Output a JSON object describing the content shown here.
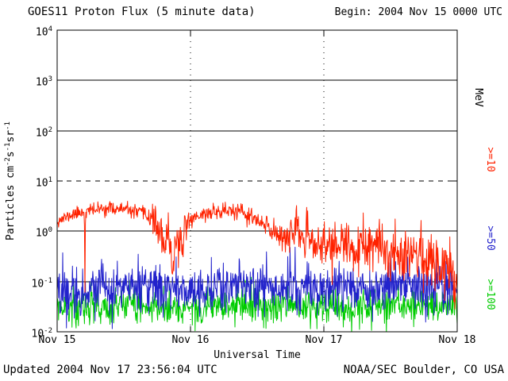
{
  "footer": {
    "updated": "Updated 2004 Nov 17 23:56:04 UTC",
    "credit": "NOAA/SEC Boulder, CO USA"
  },
  "chart_data": {
    "type": "line",
    "title": "GOES11 Proton Flux (5 minute data)",
    "subtitle": "Begin: 2004 Nov 15 0000 UTC",
    "xlabel": "Universal Time",
    "ylabel": "Particles cm-2 s-1 sr-1",
    "ylabel_parts": [
      {
        "t": "Particles cm"
      },
      {
        "s": "-2"
      },
      {
        "t": "s"
      },
      {
        "s": "-1"
      },
      {
        "t": "sr"
      },
      {
        "s": "-1"
      }
    ],
    "y_scale": "log",
    "ylim": [
      0.01,
      10000
    ],
    "y_tick_exponents": [
      4,
      3,
      2,
      1,
      0,
      -1,
      -2
    ],
    "x_ticks": [
      "Nov 15",
      "Nov 16",
      "Nov 17",
      "Nov 18"
    ],
    "x_tick_hours": [
      0,
      24,
      48,
      72
    ],
    "x_range_hours": [
      0,
      72
    ],
    "cadence_minutes": 5,
    "grid": {
      "solid_hlines": [
        1000,
        100,
        1,
        0.1
      ],
      "dashed_hlines": [
        10
      ],
      "dotted_vlines_hours": [
        24,
        48
      ]
    },
    "legend": {
      "unit_label": "MeV",
      "position": "right",
      "entries": [
        {
          "label": ">=10",
          "color": "#ff2200"
        },
        {
          "label": ">=50",
          "color": "#2222cc"
        },
        {
          "label": ">=100",
          "color": "#00cc00"
        }
      ]
    },
    "series": [
      {
        "name": ">=10 MeV",
        "color": "#ff2200",
        "seed": 11,
        "keypoint_hours": [
          0,
          3,
          4.9,
          5,
          5.1,
          9,
          12,
          15,
          17,
          18.5,
          19.5,
          20,
          20.8,
          21.5,
          22.3,
          23,
          25,
          28,
          31,
          33,
          35,
          37,
          39,
          41,
          43,
          45,
          48,
          51,
          54,
          57,
          60,
          63,
          66,
          68,
          70,
          71,
          72
        ],
        "keypoint_flux": [
          1.6,
          2.2,
          2.5,
          0.07,
          2.5,
          2.9,
          2.7,
          2.3,
          1.9,
          1.0,
          0.35,
          1.2,
          0.18,
          0.9,
          0.3,
          1.4,
          2.0,
          2.4,
          2.6,
          2.3,
          1.9,
          1.3,
          1.0,
          0.8,
          1.0,
          0.65,
          0.5,
          0.55,
          0.4,
          0.5,
          0.35,
          0.45,
          0.3,
          0.2,
          0.25,
          0.18,
          0.1
        ],
        "noise_hours": [
          0,
          16,
          18,
          23,
          24,
          34,
          36,
          44,
          48,
          60,
          66,
          72
        ],
        "noise_sigma_decades": [
          0.06,
          0.07,
          0.18,
          0.18,
          0.07,
          0.09,
          0.12,
          0.18,
          0.22,
          0.26,
          0.28,
          0.3
        ]
      },
      {
        "name": ">=50 MeV",
        "color": "#2222cc",
        "seed": 22,
        "keypoint_hours": [
          0,
          12,
          24,
          36,
          48,
          60,
          72
        ],
        "keypoint_flux": [
          0.065,
          0.075,
          0.07,
          0.08,
          0.075,
          0.08,
          0.07
        ],
        "noise_hours": [
          0,
          72
        ],
        "noise_sigma_decades": [
          0.24,
          0.24
        ]
      },
      {
        "name": ">=100 MeV",
        "color": "#00cc00",
        "seed": 33,
        "keypoint_hours": [
          0,
          12,
          24,
          36,
          48,
          60,
          72
        ],
        "keypoint_flux": [
          0.03,
          0.034,
          0.03,
          0.033,
          0.031,
          0.034,
          0.03
        ],
        "noise_hours": [
          0,
          72
        ],
        "noise_sigma_decades": [
          0.18,
          0.18
        ]
      }
    ]
  }
}
